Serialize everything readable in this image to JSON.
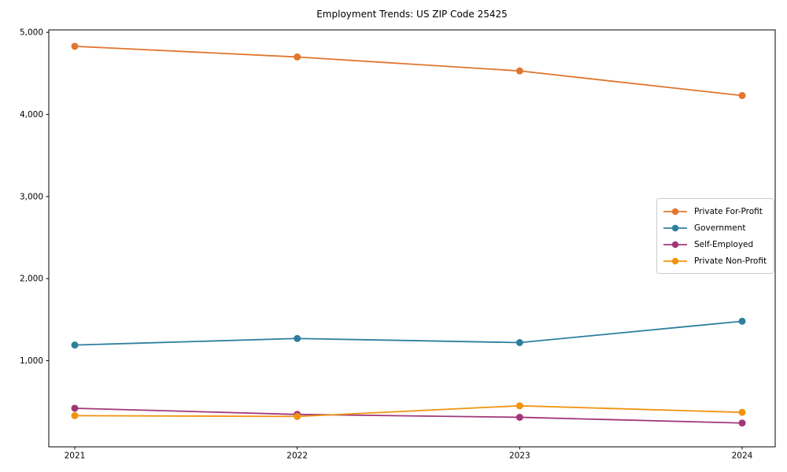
{
  "chart_data": {
    "type": "line",
    "title": "Employment Trends: US ZIP Code 25425",
    "xlabel": "",
    "ylabel": "",
    "x": [
      "2021",
      "2022",
      "2023",
      "2024"
    ],
    "series": [
      {
        "name": "Private For-Profit",
        "color": "#E0762F",
        "values": [
          4830,
          4700,
          4530,
          4230
        ]
      },
      {
        "name": "Government",
        "color": "#2E7F9E",
        "values": [
          1190,
          1270,
          1220,
          1480
        ]
      },
      {
        "name": "Self-Employed",
        "color": "#A13778",
        "values": [
          420,
          345,
          310,
          240
        ]
      },
      {
        "name": "Private Non-Profit",
        "color": "#F0940F",
        "values": [
          330,
          320,
          450,
          370
        ]
      }
    ],
    "yticks": [
      {
        "value": 1000,
        "label": "1,000"
      },
      {
        "value": 2000,
        "label": "2,000"
      },
      {
        "value": 3000,
        "label": "3,000"
      },
      {
        "value": 4000,
        "label": "4,000"
      },
      {
        "value": 5000,
        "label": "5,000"
      }
    ],
    "ylim": [
      -50,
      5030
    ],
    "grid": false,
    "legend_position": "center-right",
    "marker": "circle",
    "axis_color": "#000000",
    "legend_border_color": "#cccccc",
    "background": "#ffffff"
  }
}
